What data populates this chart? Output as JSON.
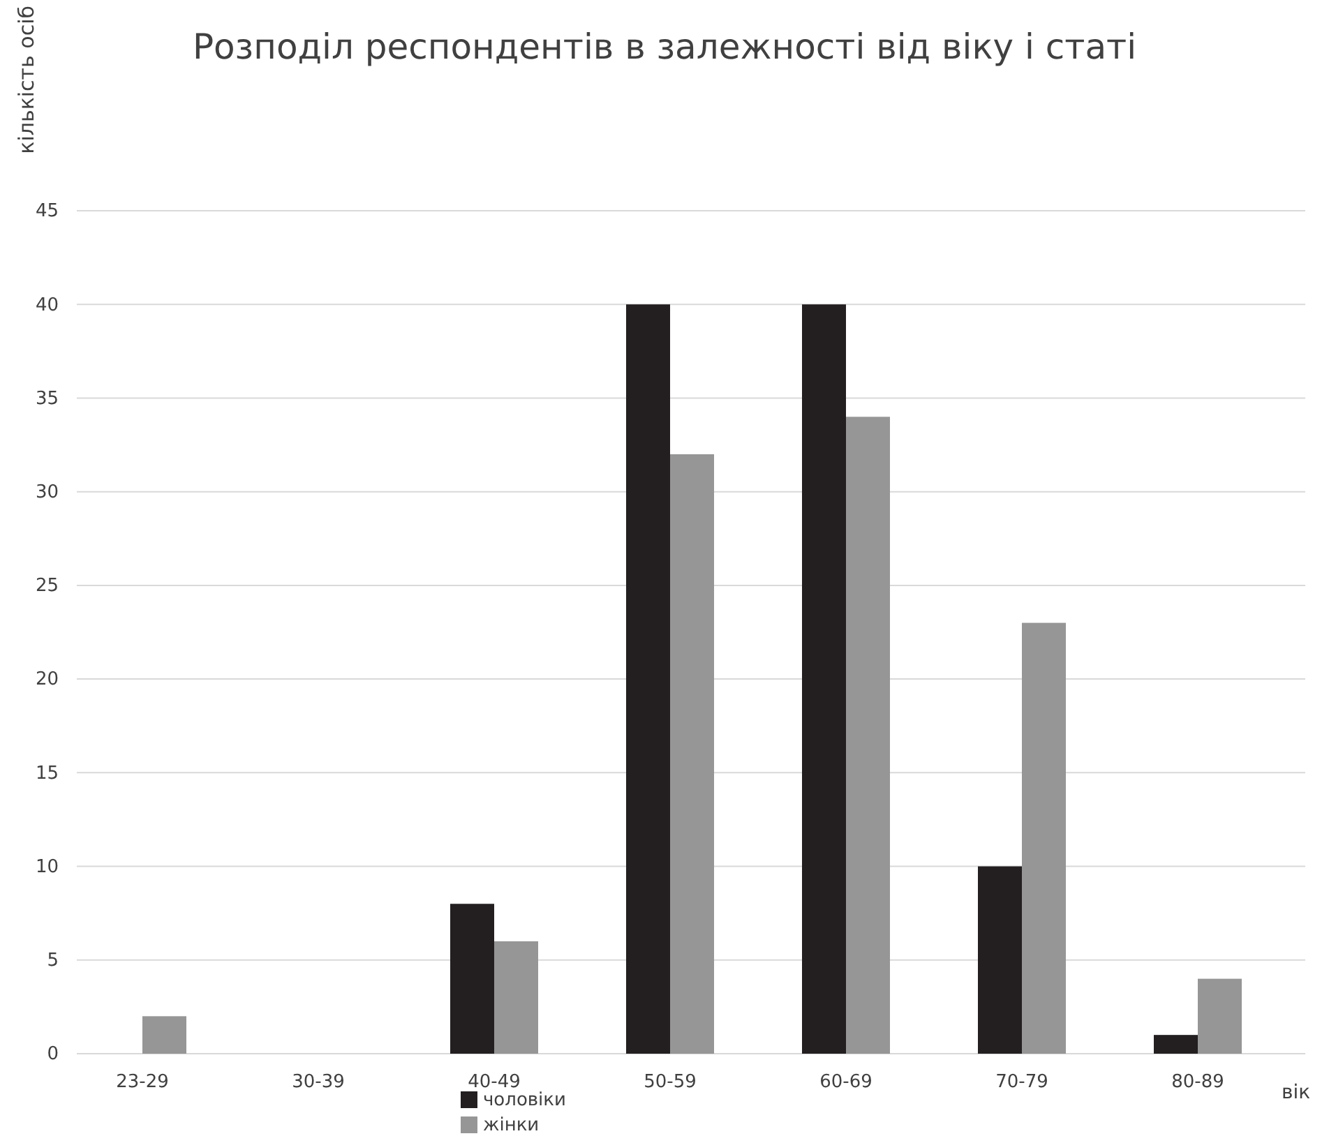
{
  "chart_data": {
    "type": "bar",
    "title": "Розподіл респондентів в залежності від віку і статі",
    "xlabel": "вік",
    "ylabel": "кількість осіб",
    "categories": [
      "23-29",
      "30-39",
      "40-49",
      "50-59",
      "60-69",
      "70-79",
      "80-89"
    ],
    "series": [
      {
        "name": "чоловіки",
        "color": "#231f20",
        "values": [
          0,
          0,
          8,
          40,
          40,
          10,
          1
        ]
      },
      {
        "name": "жінки",
        "color": "#969696",
        "values": [
          2,
          0,
          6,
          32,
          34,
          23,
          4
        ]
      }
    ],
    "ylim": [
      0,
      45
    ],
    "yticks": [
      0,
      5,
      10,
      15,
      20,
      25,
      30,
      35,
      40,
      45
    ],
    "grid": "y",
    "legend": "bottom"
  }
}
